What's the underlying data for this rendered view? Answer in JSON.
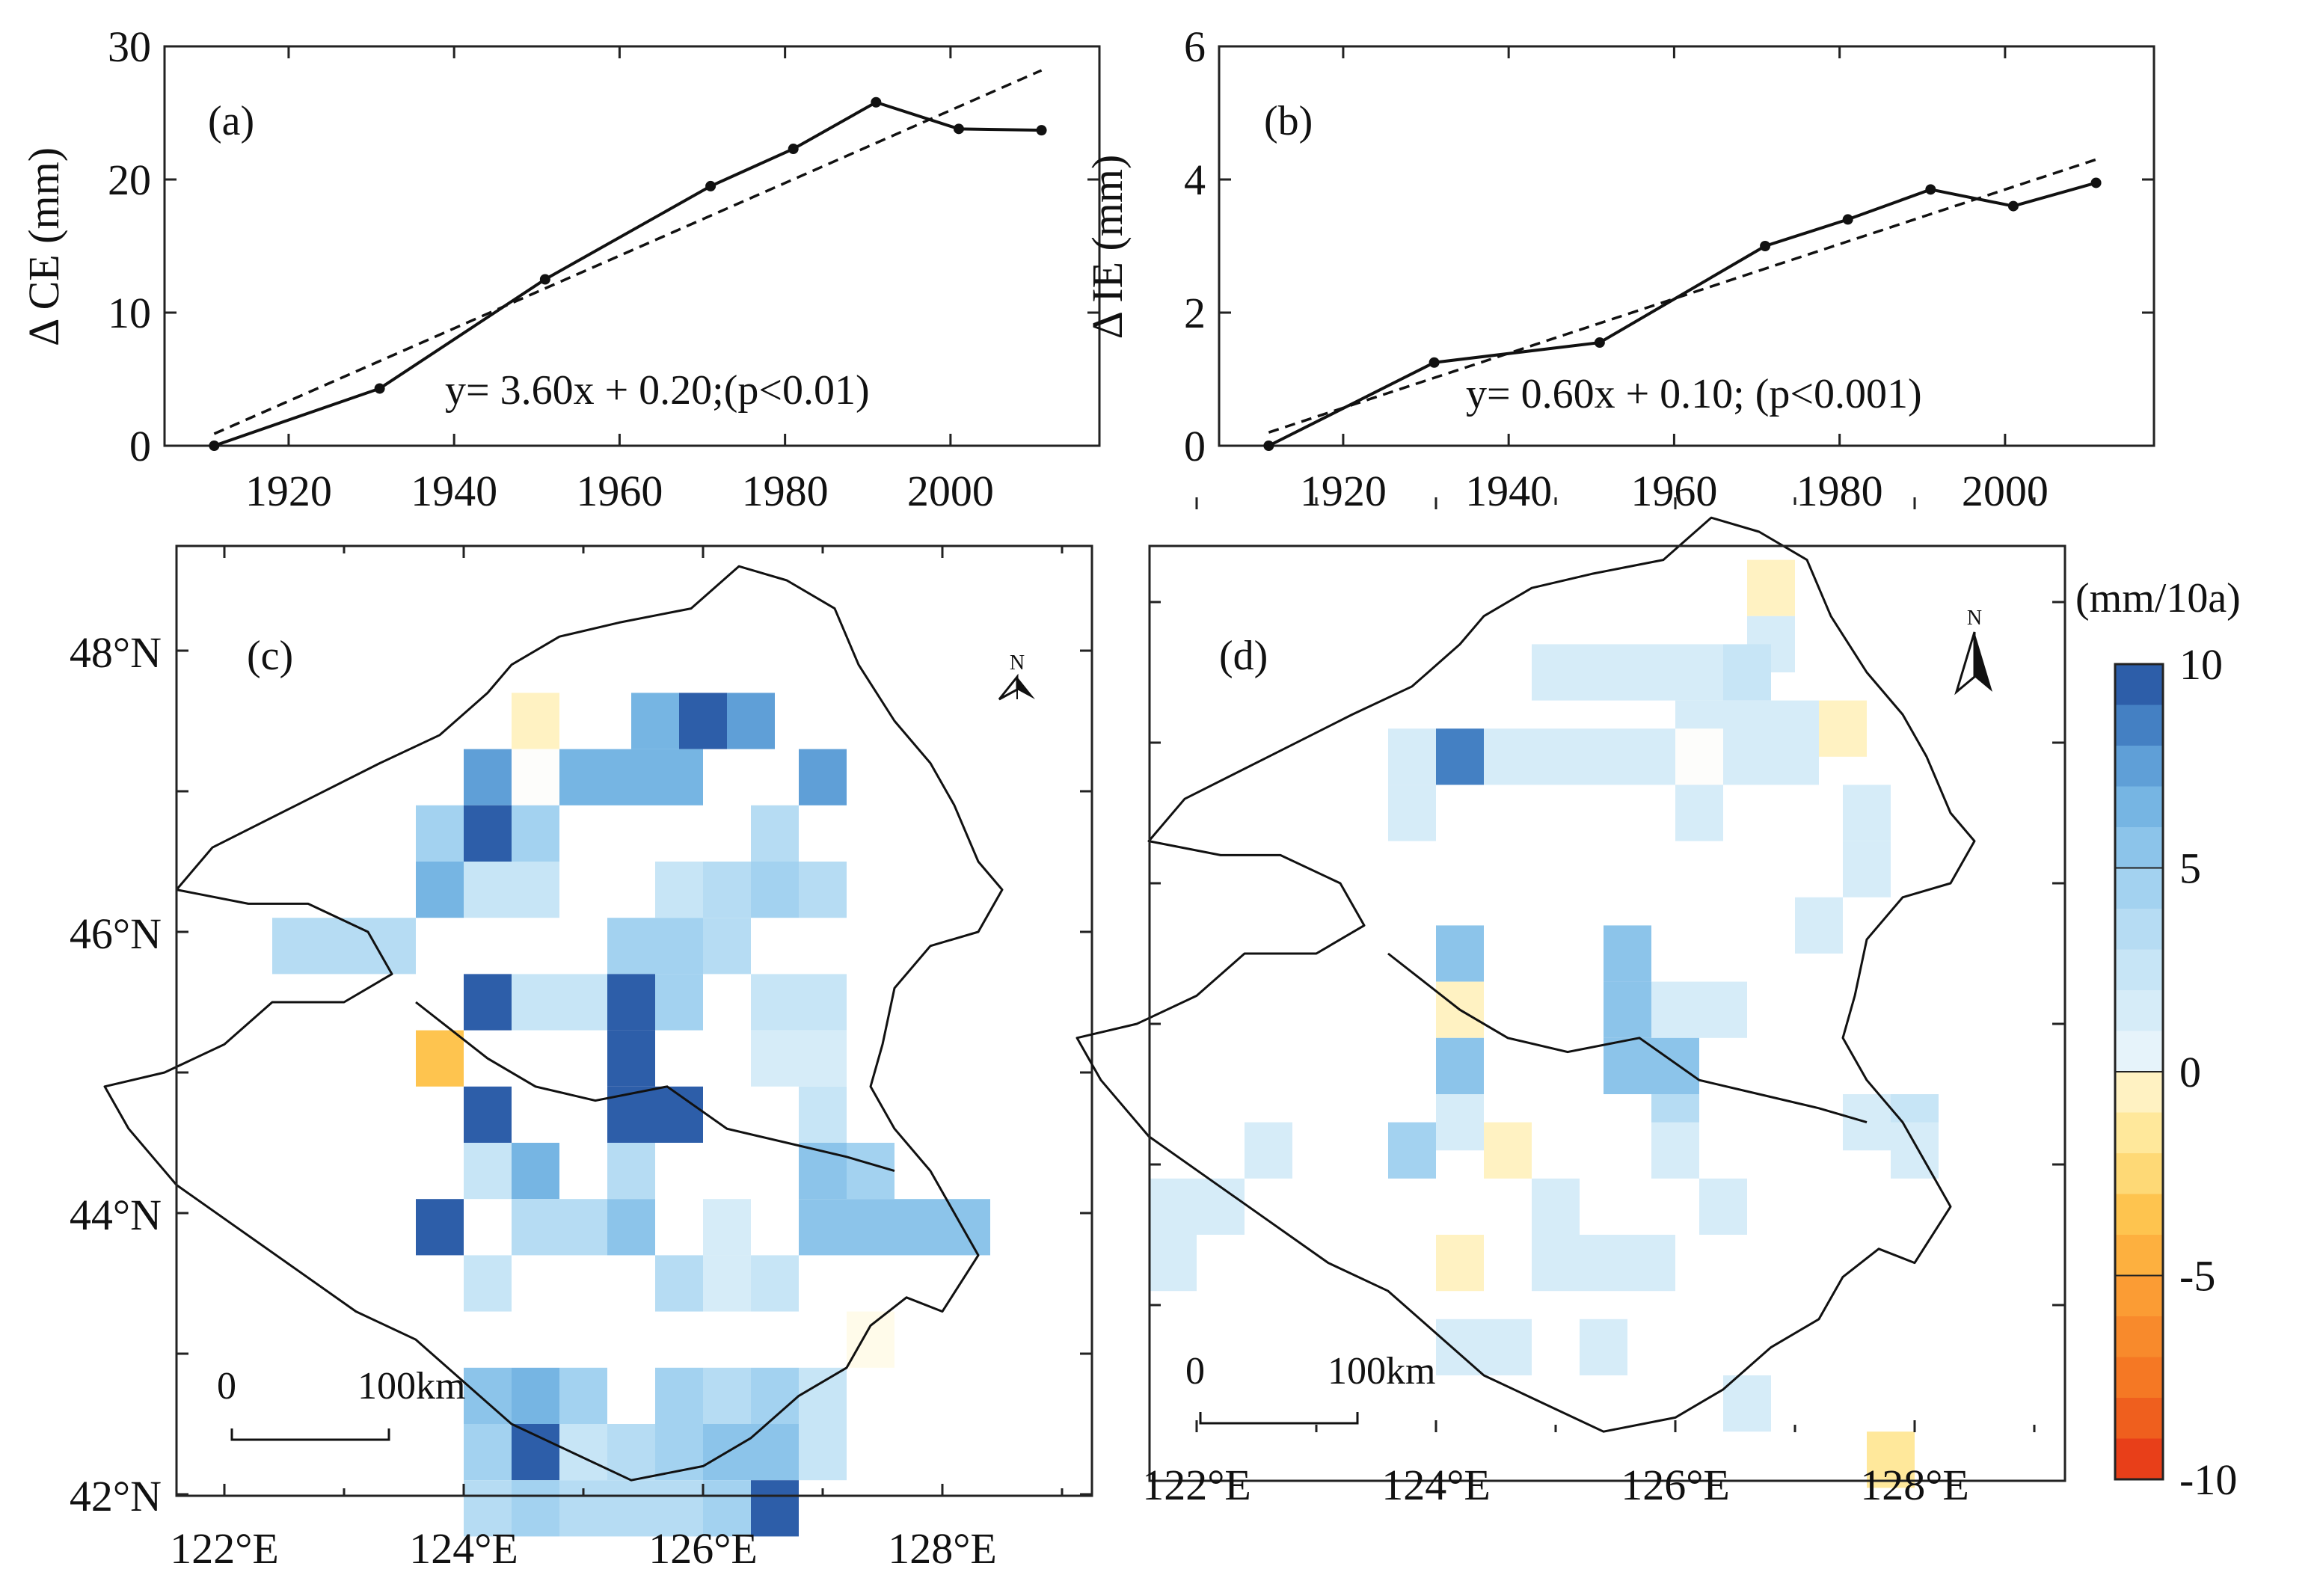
{
  "chart_data": [
    {
      "id": "a",
      "type": "line",
      "panel_label": "(a)",
      "ylabel": "Δ CE (mm)",
      "xlim": [
        1905,
        2018
      ],
      "ylim": [
        0,
        30
      ],
      "x_ticks": [
        1920,
        1940,
        1960,
        1980,
        2000
      ],
      "y_ticks": [
        0,
        10,
        20,
        30
      ],
      "series": [
        {
          "name": "ΔCE",
          "style": "solid-markers",
          "x": [
            1911,
            1931,
            1951,
            1971,
            1981,
            1991,
            2001,
            2011
          ],
          "y": [
            0,
            4.3,
            12.5,
            19.5,
            22.3,
            25.8,
            23.8,
            23.7
          ]
        },
        {
          "name": "trend",
          "style": "dashed",
          "x": [
            1911,
            2011
          ],
          "y": [
            0.9,
            28.2
          ]
        }
      ],
      "equation": "y= 3.60x + 0.20;(p<0.01)"
    },
    {
      "id": "b",
      "type": "line",
      "panel_label": "(b)",
      "ylabel": "Δ IE (mm)",
      "xlim": [
        1905,
        2018
      ],
      "ylim": [
        0,
        6
      ],
      "x_ticks": [
        1920,
        1940,
        1960,
        1980,
        2000
      ],
      "y_ticks": [
        0,
        2,
        4,
        6
      ],
      "series": [
        {
          "name": "ΔIE",
          "style": "solid-markers",
          "x": [
            1911,
            1931,
            1951,
            1971,
            1981,
            1991,
            2001,
            2011
          ],
          "y": [
            0,
            1.25,
            1.55,
            3.0,
            3.4,
            3.85,
            3.6,
            3.95
          ]
        },
        {
          "name": "trend",
          "style": "dashed",
          "x": [
            1911,
            2011
          ],
          "y": [
            0.2,
            4.3
          ]
        }
      ],
      "equation": "y= 0.60x + 0.10; (p<0.001)"
    },
    {
      "id": "c",
      "type": "heatmap",
      "panel_label": "(c)",
      "x_ticks": [
        "122°E",
        "124°E",
        "126°E",
        "128°E"
      ],
      "y_ticks": [
        "42°N",
        "44°N",
        "46°N",
        "48°N"
      ],
      "lon_range": [
        121.0,
        128.8
      ],
      "lat_range": [
        41.8,
        48.5
      ],
      "grid_step": 0.4,
      "north_label": "N",
      "scale_labels": [
        "0",
        "100km"
      ],
      "cells": [
        [
          124.6,
          47.5,
          -0.5
        ],
        [
          125.6,
          47.5,
          7
        ],
        [
          126.0,
          47.5,
          10
        ],
        [
          126.4,
          47.5,
          8
        ],
        [
          124.2,
          47.1,
          8
        ],
        [
          124.6,
          47.1,
          0
        ],
        [
          125.0,
          47.1,
          7
        ],
        [
          125.4,
          47.1,
          7
        ],
        [
          125.8,
          47.1,
          7
        ],
        [
          127.0,
          47.1,
          8
        ],
        [
          123.8,
          46.7,
          5
        ],
        [
          124.2,
          46.7,
          10
        ],
        [
          124.6,
          46.7,
          5
        ],
        [
          126.6,
          46.7,
          4
        ],
        [
          123.8,
          46.3,
          7
        ],
        [
          124.2,
          46.3,
          3
        ],
        [
          124.6,
          46.3,
          3
        ],
        [
          125.8,
          46.3,
          3
        ],
        [
          126.2,
          46.3,
          4
        ],
        [
          126.6,
          46.3,
          5
        ],
        [
          127.0,
          46.3,
          4
        ],
        [
          122.6,
          45.9,
          4
        ],
        [
          123.0,
          45.9,
          4
        ],
        [
          123.4,
          45.9,
          4
        ],
        [
          125.4,
          45.9,
          5
        ],
        [
          125.8,
          45.9,
          5
        ],
        [
          126.2,
          45.9,
          4
        ],
        [
          124.2,
          45.5,
          10
        ],
        [
          124.6,
          45.5,
          3
        ],
        [
          125.0,
          45.5,
          3
        ],
        [
          125.4,
          45.5,
          10
        ],
        [
          125.8,
          45.5,
          5
        ],
        [
          126.6,
          45.5,
          3
        ],
        [
          127.0,
          45.5,
          3
        ],
        [
          123.8,
          45.1,
          -3.5
        ],
        [
          125.4,
          45.1,
          10
        ],
        [
          126.6,
          45.1,
          2
        ],
        [
          127.0,
          45.1,
          2
        ],
        [
          124.2,
          44.7,
          10
        ],
        [
          125.4,
          44.7,
          10
        ],
        [
          125.8,
          44.7,
          10
        ],
        [
          127.0,
          44.7,
          3
        ],
        [
          124.2,
          44.3,
          3
        ],
        [
          124.6,
          44.3,
          7
        ],
        [
          125.4,
          44.3,
          4
        ],
        [
          127.0,
          44.3,
          6
        ],
        [
          127.4,
          44.3,
          5
        ],
        [
          123.8,
          43.9,
          10
        ],
        [
          124.6,
          43.9,
          4
        ],
        [
          125.0,
          43.9,
          4
        ],
        [
          125.4,
          43.9,
          6
        ],
        [
          126.2,
          43.9,
          2
        ],
        [
          127.0,
          43.9,
          6
        ],
        [
          127.4,
          43.9,
          6
        ],
        [
          127.8,
          43.9,
          6
        ],
        [
          128.2,
          43.9,
          6
        ],
        [
          124.2,
          43.5,
          3
        ],
        [
          125.8,
          43.5,
          4
        ],
        [
          126.2,
          43.5,
          2
        ],
        [
          126.6,
          43.5,
          3
        ],
        [
          127.4,
          43.1,
          -0.3
        ],
        [
          124.2,
          42.7,
          6
        ],
        [
          124.6,
          42.7,
          7
        ],
        [
          125.0,
          42.7,
          5
        ],
        [
          125.8,
          42.7,
          5
        ],
        [
          126.2,
          42.7,
          4
        ],
        [
          126.6,
          42.7,
          5
        ],
        [
          127.0,
          42.7,
          3
        ],
        [
          124.2,
          42.3,
          5
        ],
        [
          124.6,
          42.3,
          10
        ],
        [
          125.0,
          42.3,
          3
        ],
        [
          125.4,
          42.3,
          4
        ],
        [
          125.8,
          42.3,
          5
        ],
        [
          126.2,
          42.3,
          6
        ],
        [
          126.6,
          42.3,
          6
        ],
        [
          127.0,
          42.3,
          3
        ],
        [
          124.2,
          41.9,
          4
        ],
        [
          124.6,
          41.9,
          5
        ],
        [
          125.0,
          41.9,
          4
        ],
        [
          125.4,
          41.9,
          4
        ],
        [
          125.8,
          41.9,
          4
        ],
        [
          126.2,
          41.9,
          5
        ],
        [
          126.6,
          41.9,
          10
        ]
      ]
    },
    {
      "id": "d",
      "type": "heatmap",
      "panel_label": "(d)",
      "x_ticks": [
        "122°E",
        "124°E",
        "126°E",
        "128°E"
      ],
      "lon_range": [
        121.0,
        128.8
      ],
      "lat_range": [
        41.8,
        48.5
      ],
      "grid_step": 0.4,
      "north_label": "N",
      "scale_labels": [
        "0",
        "100km"
      ],
      "cells": [
        [
          126.8,
          48.1,
          -0.8
        ],
        [
          126.8,
          47.7,
          2
        ],
        [
          125.0,
          47.5,
          2
        ],
        [
          125.4,
          47.5,
          2
        ],
        [
          125.8,
          47.5,
          2
        ],
        [
          126.2,
          47.5,
          2
        ],
        [
          126.6,
          47.5,
          3
        ],
        [
          126.2,
          47.1,
          2
        ],
        [
          126.6,
          47.1,
          2
        ],
        [
          127.0,
          47.1,
          2
        ],
        [
          127.4,
          47.1,
          -0.8
        ],
        [
          123.8,
          46.9,
          2
        ],
        [
          124.2,
          46.9,
          9
        ],
        [
          124.6,
          46.9,
          2
        ],
        [
          125.0,
          46.9,
          2
        ],
        [
          125.4,
          46.9,
          2
        ],
        [
          125.8,
          46.9,
          1.5
        ],
        [
          126.2,
          46.9,
          0
        ],
        [
          126.6,
          46.9,
          1.5
        ],
        [
          127.0,
          46.9,
          2
        ],
        [
          123.8,
          46.5,
          1.5
        ],
        [
          126.2,
          46.5,
          1.5
        ],
        [
          127.6,
          46.5,
          1.5
        ],
        [
          127.6,
          46.1,
          2
        ],
        [
          127.2,
          45.7,
          1.5
        ],
        [
          124.2,
          45.5,
          6
        ],
        [
          125.6,
          45.5,
          6
        ],
        [
          124.2,
          45.1,
          -0.8
        ],
        [
          125.6,
          45.1,
          6
        ],
        [
          126.0,
          45.1,
          2
        ],
        [
          126.4,
          45.1,
          1.5
        ],
        [
          124.2,
          44.7,
          6
        ],
        [
          125.6,
          44.7,
          6
        ],
        [
          126.0,
          44.7,
          6
        ],
        [
          124.2,
          44.3,
          1.5
        ],
        [
          126.0,
          44.3,
          4
        ],
        [
          127.6,
          44.3,
          1.5
        ],
        [
          128.0,
          44.3,
          3
        ],
        [
          122.6,
          44.1,
          2
        ],
        [
          123.8,
          44.1,
          5
        ],
        [
          124.6,
          44.1,
          -0.6
        ],
        [
          126.0,
          44.1,
          1.5
        ],
        [
          128.0,
          44.1,
          1.5
        ],
        [
          121.8,
          43.7,
          1.5
        ],
        [
          122.2,
          43.7,
          1.5
        ],
        [
          125.0,
          43.7,
          1.5
        ],
        [
          126.4,
          43.7,
          1.5
        ],
        [
          121.8,
          43.3,
          1.5
        ],
        [
          124.2,
          43.3,
          -0.8
        ],
        [
          125.0,
          43.3,
          1.5
        ],
        [
          125.4,
          43.3,
          1.5
        ],
        [
          125.8,
          43.3,
          1.5
        ],
        [
          124.2,
          42.7,
          1.5
        ],
        [
          124.6,
          42.7,
          1.5
        ],
        [
          125.4,
          42.7,
          1.5
        ],
        [
          126.6,
          42.3,
          2
        ],
        [
          127.8,
          41.9,
          -1.5
        ]
      ]
    }
  ],
  "colorbar": {
    "title": "(mm/10a)",
    "tick_labels": [
      "10",
      "5",
      "0",
      "-5",
      "-10"
    ],
    "min": -10,
    "max": 10,
    "step": 1,
    "colors_positive": [
      "#fdfdfb",
      "#e6f3fa",
      "#d6ecf8",
      "#c7e5f6",
      "#b6dcf3",
      "#a3d2f0",
      "#8cc4ea",
      "#76b5e3",
      "#5f9fd7",
      "#4480c3",
      "#2d5ea9"
    ],
    "colors_negative": [
      "#fffbea",
      "#fff2c2",
      "#ffe89b",
      "#fed976",
      "#fec44f",
      "#fdb03f",
      "#fb9c34",
      "#f88a2c",
      "#f57824",
      "#ef5f1e",
      "#e83f19"
    ]
  }
}
